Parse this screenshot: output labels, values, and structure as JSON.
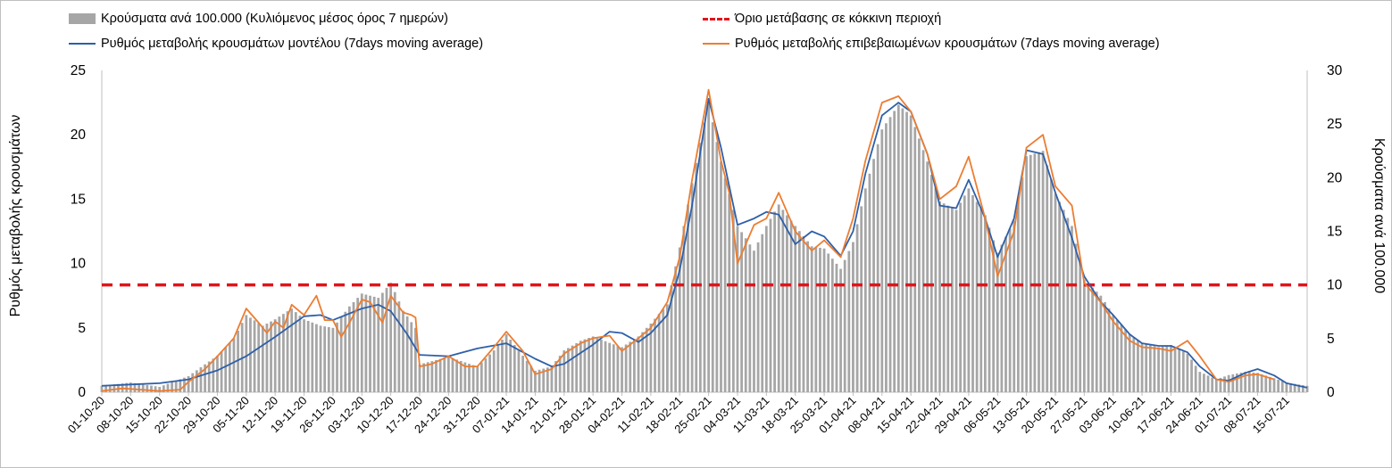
{
  "chart_data": {
    "type": "bar+line",
    "x_type": "date",
    "x_start": "2020-10-01",
    "x_end": "2021-07-20",
    "x_tick_labels": [
      "01-10-20",
      "08-10-20",
      "15-10-20",
      "22-10-20",
      "29-10-20",
      "05-11-20",
      "12-11-20",
      "19-11-20",
      "26-11-20",
      "03-12-20",
      "10-12-20",
      "17-12-20",
      "24-12-20",
      "31-12-20",
      "07-01-21",
      "14-01-21",
      "21-01-21",
      "28-01-21",
      "04-02-21",
      "11-02-21",
      "18-02-21",
      "25-02-21",
      "04-03-21",
      "11-03-21",
      "18-03-21",
      "25-03-21",
      "01-04-21",
      "08-04-21",
      "15-04-21",
      "22-04-21",
      "29-04-21",
      "06-05-21",
      "13-05-21",
      "20-05-21",
      "27-05-21",
      "03-06-21",
      "10-06-21",
      "17-06-21",
      "24-06-21",
      "01-07-21",
      "08-07-21",
      "15-07-21"
    ],
    "ylabel_left": "Ρυθμός μεταβολής κρουσμάτων",
    "ylabel_right": "Κρούσματα ανά 100.000",
    "ylim_left": [
      0,
      25
    ],
    "yticks_left": [
      0,
      5,
      10,
      15,
      20,
      25
    ],
    "ylim_right": [
      0,
      30
    ],
    "yticks_right": [
      0,
      5,
      10,
      15,
      20,
      25,
      30
    ],
    "legend_position": "top",
    "threshold": {
      "name": "Όριο μετάβασης σε κόκκινη περιοχή",
      "axis": "right",
      "value": 10,
      "color": "#e0141b"
    },
    "series": [
      {
        "name": "Κρούσματα ανά 100.000 (Κυλιόμενος μέσος όρος 7 ημερών)",
        "kind": "bar",
        "axis": "right",
        "color": "#a6a6a6",
        "points": [
          [
            "2020-10-01",
            0.6
          ],
          [
            "2020-10-08",
            0.9
          ],
          [
            "2020-10-15",
            0.5
          ],
          [
            "2020-10-22",
            1.5
          ],
          [
            "2020-10-26",
            2.6
          ],
          [
            "2020-10-29",
            3.4
          ],
          [
            "2020-11-02",
            5.0
          ],
          [
            "2020-11-05",
            7.2
          ],
          [
            "2020-11-09",
            6.2
          ],
          [
            "2020-11-12",
            6.8
          ],
          [
            "2020-11-16",
            7.8
          ],
          [
            "2020-11-19",
            6.8
          ],
          [
            "2020-11-23",
            6.2
          ],
          [
            "2020-11-26",
            6.0
          ],
          [
            "2020-11-30",
            8.0
          ],
          [
            "2020-12-03",
            9.2
          ],
          [
            "2020-12-07",
            8.8
          ],
          [
            "2020-12-10",
            10.2
          ],
          [
            "2020-12-13",
            7.6
          ],
          [
            "2020-12-16",
            6.0
          ],
          [
            "2020-12-17",
            2.6
          ],
          [
            "2020-12-24",
            3.3
          ],
          [
            "2020-12-31",
            2.4
          ],
          [
            "2021-01-04",
            3.9
          ],
          [
            "2021-01-07",
            5.4
          ],
          [
            "2021-01-11",
            3.4
          ],
          [
            "2021-01-14",
            2.0
          ],
          [
            "2021-01-18",
            2.4
          ],
          [
            "2021-01-21",
            3.9
          ],
          [
            "2021-01-25",
            4.8
          ],
          [
            "2021-01-28",
            5.2
          ],
          [
            "2021-02-01",
            4.6
          ],
          [
            "2021-02-04",
            4.2
          ],
          [
            "2021-02-08",
            5.2
          ],
          [
            "2021-02-11",
            6.4
          ],
          [
            "2021-02-15",
            8.2
          ],
          [
            "2021-02-18",
            13.5
          ],
          [
            "2021-02-21",
            19.5
          ],
          [
            "2021-02-25",
            27.0
          ],
          [
            "2021-02-28",
            21.5
          ],
          [
            "2021-03-04",
            15.5
          ],
          [
            "2021-03-08",
            13.2
          ],
          [
            "2021-03-11",
            15.5
          ],
          [
            "2021-03-14",
            17.5
          ],
          [
            "2021-03-18",
            15.5
          ],
          [
            "2021-03-22",
            13.6
          ],
          [
            "2021-03-25",
            13.4
          ],
          [
            "2021-03-29",
            11.5
          ],
          [
            "2021-04-01",
            14.0
          ],
          [
            "2021-04-04",
            19.0
          ],
          [
            "2021-04-08",
            24.5
          ],
          [
            "2021-04-12",
            26.8
          ],
          [
            "2021-04-15",
            25.8
          ],
          [
            "2021-04-19",
            21.5
          ],
          [
            "2021-04-22",
            17.8
          ],
          [
            "2021-04-26",
            17.0
          ],
          [
            "2021-04-29",
            19.0
          ],
          [
            "2021-05-03",
            16.5
          ],
          [
            "2021-05-06",
            13.0
          ],
          [
            "2021-05-10",
            16.0
          ],
          [
            "2021-05-13",
            22.0
          ],
          [
            "2021-05-17",
            22.5
          ],
          [
            "2021-05-20",
            18.5
          ],
          [
            "2021-05-24",
            15.5
          ],
          [
            "2021-05-27",
            10.5
          ],
          [
            "2021-05-31",
            9.0
          ],
          [
            "2021-06-03",
            7.2
          ],
          [
            "2021-06-07",
            5.4
          ],
          [
            "2021-06-10",
            4.6
          ],
          [
            "2021-06-14",
            4.2
          ],
          [
            "2021-06-17",
            4.4
          ],
          [
            "2021-06-21",
            3.6
          ],
          [
            "2021-06-24",
            1.9
          ],
          [
            "2021-06-28",
            1.2
          ],
          [
            "2021-07-01",
            1.6
          ],
          [
            "2021-07-05",
            1.9
          ],
          [
            "2021-07-08",
            1.8
          ],
          [
            "2021-07-12",
            1.3
          ],
          [
            "2021-07-15",
            0.9
          ],
          [
            "2021-07-20",
            0.6
          ]
        ]
      },
      {
        "name": "Ρυθμός μεταβολής κρουσμάτων μοντέλου (7days moving average)",
        "kind": "line",
        "axis": "left",
        "color": "#2e5fa8",
        "points": [
          [
            "2020-10-01",
            0.5
          ],
          [
            "2020-10-08",
            0.6
          ],
          [
            "2020-10-15",
            0.7
          ],
          [
            "2020-10-22",
            1.0
          ],
          [
            "2020-10-29",
            1.7
          ],
          [
            "2020-11-05",
            2.8
          ],
          [
            "2020-11-12",
            4.3
          ],
          [
            "2020-11-19",
            5.9
          ],
          [
            "2020-11-23",
            6.0
          ],
          [
            "2020-11-26",
            5.6
          ],
          [
            "2020-12-03",
            6.5
          ],
          [
            "2020-12-07",
            6.8
          ],
          [
            "2020-12-10",
            6.3
          ],
          [
            "2020-12-14",
            4.5
          ],
          [
            "2020-12-17",
            2.9
          ],
          [
            "2020-12-24",
            2.8
          ],
          [
            "2020-12-31",
            3.4
          ],
          [
            "2021-01-07",
            3.8
          ],
          [
            "2021-01-14",
            2.6
          ],
          [
            "2021-01-18",
            2.0
          ],
          [
            "2021-01-21",
            2.2
          ],
          [
            "2021-01-28",
            3.7
          ],
          [
            "2021-02-01",
            4.7
          ],
          [
            "2021-02-04",
            4.6
          ],
          [
            "2021-02-08",
            3.9
          ],
          [
            "2021-02-11",
            4.6
          ],
          [
            "2021-02-15",
            6.0
          ],
          [
            "2021-02-18",
            9.5
          ],
          [
            "2021-02-21",
            14.5
          ],
          [
            "2021-02-25",
            22.8
          ],
          [
            "2021-02-28",
            19.0
          ],
          [
            "2021-03-04",
            13.0
          ],
          [
            "2021-03-08",
            13.5
          ],
          [
            "2021-03-11",
            14.0
          ],
          [
            "2021-03-14",
            13.8
          ],
          [
            "2021-03-18",
            11.5
          ],
          [
            "2021-03-22",
            12.5
          ],
          [
            "2021-03-25",
            12.1
          ],
          [
            "2021-03-29",
            10.6
          ],
          [
            "2021-04-01",
            12.5
          ],
          [
            "2021-04-04",
            17.0
          ],
          [
            "2021-04-08",
            21.5
          ],
          [
            "2021-04-12",
            22.5
          ],
          [
            "2021-04-15",
            21.8
          ],
          [
            "2021-04-19",
            18.5
          ],
          [
            "2021-04-22",
            14.5
          ],
          [
            "2021-04-26",
            14.3
          ],
          [
            "2021-04-29",
            16.5
          ],
          [
            "2021-05-03",
            13.5
          ],
          [
            "2021-05-06",
            10.5
          ],
          [
            "2021-05-10",
            13.5
          ],
          [
            "2021-05-13",
            18.8
          ],
          [
            "2021-05-17",
            18.5
          ],
          [
            "2021-05-20",
            15.5
          ],
          [
            "2021-05-24",
            12.0
          ],
          [
            "2021-05-27",
            9.0
          ],
          [
            "2021-05-31",
            7.0
          ],
          [
            "2021-06-03",
            6.0
          ],
          [
            "2021-06-07",
            4.5
          ],
          [
            "2021-06-10",
            3.8
          ],
          [
            "2021-06-14",
            3.6
          ],
          [
            "2021-06-17",
            3.6
          ],
          [
            "2021-06-21",
            3.1
          ],
          [
            "2021-06-24",
            2.0
          ],
          [
            "2021-06-28",
            1.0
          ],
          [
            "2021-07-01",
            0.9
          ],
          [
            "2021-07-05",
            1.5
          ],
          [
            "2021-07-08",
            1.8
          ],
          [
            "2021-07-12",
            1.3
          ],
          [
            "2021-07-15",
            0.7
          ],
          [
            "2021-07-20",
            0.35
          ]
        ]
      },
      {
        "name": "Ρυθμός μεταβολής επιβεβαιωμένων κρουσμάτων (7days moving average)",
        "kind": "line",
        "axis": "left",
        "color": "#ec7d31",
        "points": [
          [
            "2020-10-01",
            0.1
          ],
          [
            "2020-10-06",
            0.3
          ],
          [
            "2020-10-15",
            0.1
          ],
          [
            "2020-10-20",
            0.2
          ],
          [
            "2020-10-22",
            0.8
          ],
          [
            "2020-10-26",
            1.8
          ],
          [
            "2020-10-29",
            2.8
          ],
          [
            "2020-11-02",
            4.2
          ],
          [
            "2020-11-05",
            6.5
          ],
          [
            "2020-11-08",
            5.4
          ],
          [
            "2020-11-10",
            4.6
          ],
          [
            "2020-11-12",
            5.5
          ],
          [
            "2020-11-14",
            5.0
          ],
          [
            "2020-11-16",
            6.8
          ],
          [
            "2020-11-19",
            6.0
          ],
          [
            "2020-11-22",
            7.5
          ],
          [
            "2020-11-24",
            5.6
          ],
          [
            "2020-11-26",
            5.6
          ],
          [
            "2020-11-28",
            4.3
          ],
          [
            "2020-11-30",
            5.4
          ],
          [
            "2020-12-03",
            7.2
          ],
          [
            "2020-12-05",
            7.0
          ],
          [
            "2020-12-08",
            5.4
          ],
          [
            "2020-12-10",
            7.5
          ],
          [
            "2020-12-13",
            6.2
          ],
          [
            "2020-12-15",
            6.0
          ],
          [
            "2020-12-16",
            5.8
          ],
          [
            "2020-12-17",
            2.0
          ],
          [
            "2020-12-20",
            2.2
          ],
          [
            "2020-12-24",
            2.8
          ],
          [
            "2020-12-28",
            2.0
          ],
          [
            "2020-12-31",
            2.0
          ],
          [
            "2021-01-04",
            3.5
          ],
          [
            "2021-01-07",
            4.7
          ],
          [
            "2021-01-11",
            3.2
          ],
          [
            "2021-01-14",
            1.4
          ],
          [
            "2021-01-18",
            1.8
          ],
          [
            "2021-01-21",
            3.0
          ],
          [
            "2021-01-25",
            3.8
          ],
          [
            "2021-01-28",
            4.2
          ],
          [
            "2021-02-01",
            4.4
          ],
          [
            "2021-02-04",
            3.2
          ],
          [
            "2021-02-08",
            4.2
          ],
          [
            "2021-02-11",
            5.0
          ],
          [
            "2021-02-15",
            7.0
          ],
          [
            "2021-02-18",
            10.5
          ],
          [
            "2021-02-21",
            16.5
          ],
          [
            "2021-02-25",
            23.5
          ],
          [
            "2021-02-28",
            18.0
          ],
          [
            "2021-03-02",
            15.5
          ],
          [
            "2021-03-04",
            10.0
          ],
          [
            "2021-03-08",
            13.0
          ],
          [
            "2021-03-11",
            13.5
          ],
          [
            "2021-03-14",
            15.5
          ],
          [
            "2021-03-18",
            12.5
          ],
          [
            "2021-03-22",
            11.0
          ],
          [
            "2021-03-25",
            11.8
          ],
          [
            "2021-03-29",
            10.5
          ],
          [
            "2021-04-01",
            13.5
          ],
          [
            "2021-04-04",
            18.0
          ],
          [
            "2021-04-08",
            22.5
          ],
          [
            "2021-04-12",
            23.0
          ],
          [
            "2021-04-15",
            21.8
          ],
          [
            "2021-04-19",
            18.5
          ],
          [
            "2021-04-22",
            15.0
          ],
          [
            "2021-04-26",
            16.0
          ],
          [
            "2021-04-29",
            18.3
          ],
          [
            "2021-05-03",
            13.5
          ],
          [
            "2021-05-06",
            9.0
          ],
          [
            "2021-05-10",
            12.5
          ],
          [
            "2021-05-13",
            19.0
          ],
          [
            "2021-05-17",
            20.0
          ],
          [
            "2021-05-20",
            16.0
          ],
          [
            "2021-05-24",
            14.5
          ],
          [
            "2021-05-27",
            8.5
          ],
          [
            "2021-05-31",
            7.0
          ],
          [
            "2021-06-03",
            5.5
          ],
          [
            "2021-06-07",
            4.0
          ],
          [
            "2021-06-10",
            3.5
          ],
          [
            "2021-06-14",
            3.4
          ],
          [
            "2021-06-17",
            3.2
          ],
          [
            "2021-06-21",
            4.0
          ],
          [
            "2021-06-24",
            2.8
          ],
          [
            "2021-06-28",
            1.0
          ],
          [
            "2021-07-01",
            0.8
          ],
          [
            "2021-07-05",
            1.3
          ],
          [
            "2021-07-08",
            1.4
          ],
          [
            "2021-07-12",
            1.0
          ]
        ]
      }
    ]
  }
}
